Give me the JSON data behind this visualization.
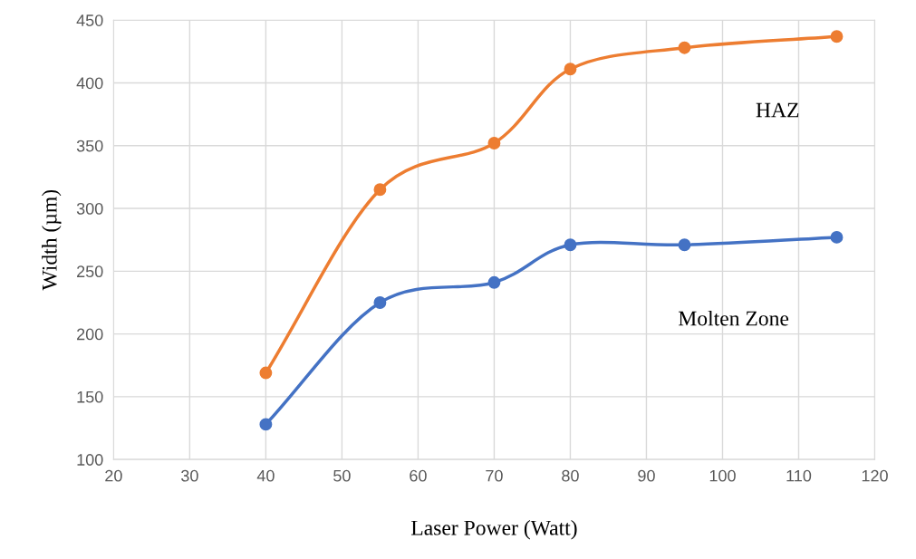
{
  "chart_data": {
    "type": "line",
    "xlabel": "Laser Power (Watt)",
    "ylabel": "Width (µm)",
    "x": [
      40,
      55,
      70,
      80,
      95,
      115
    ],
    "series": [
      {
        "name": "HAZ",
        "color": "#ed7d31",
        "values": [
          169,
          315,
          352,
          411,
          428,
          437
        ]
      },
      {
        "name": "Molten Zone",
        "color": "#4472c4",
        "values": [
          128,
          225,
          241,
          271,
          271,
          277
        ]
      }
    ],
    "xlim": [
      20,
      120
    ],
    "xticks": [
      20,
      30,
      40,
      50,
      60,
      70,
      80,
      90,
      100,
      110,
      120
    ],
    "ylim": [
      100,
      450
    ],
    "yticks": [
      100,
      150,
      200,
      250,
      300,
      350,
      400,
      450
    ],
    "grid": true,
    "marker": "circle",
    "line_style": "solid",
    "legend": false
  }
}
